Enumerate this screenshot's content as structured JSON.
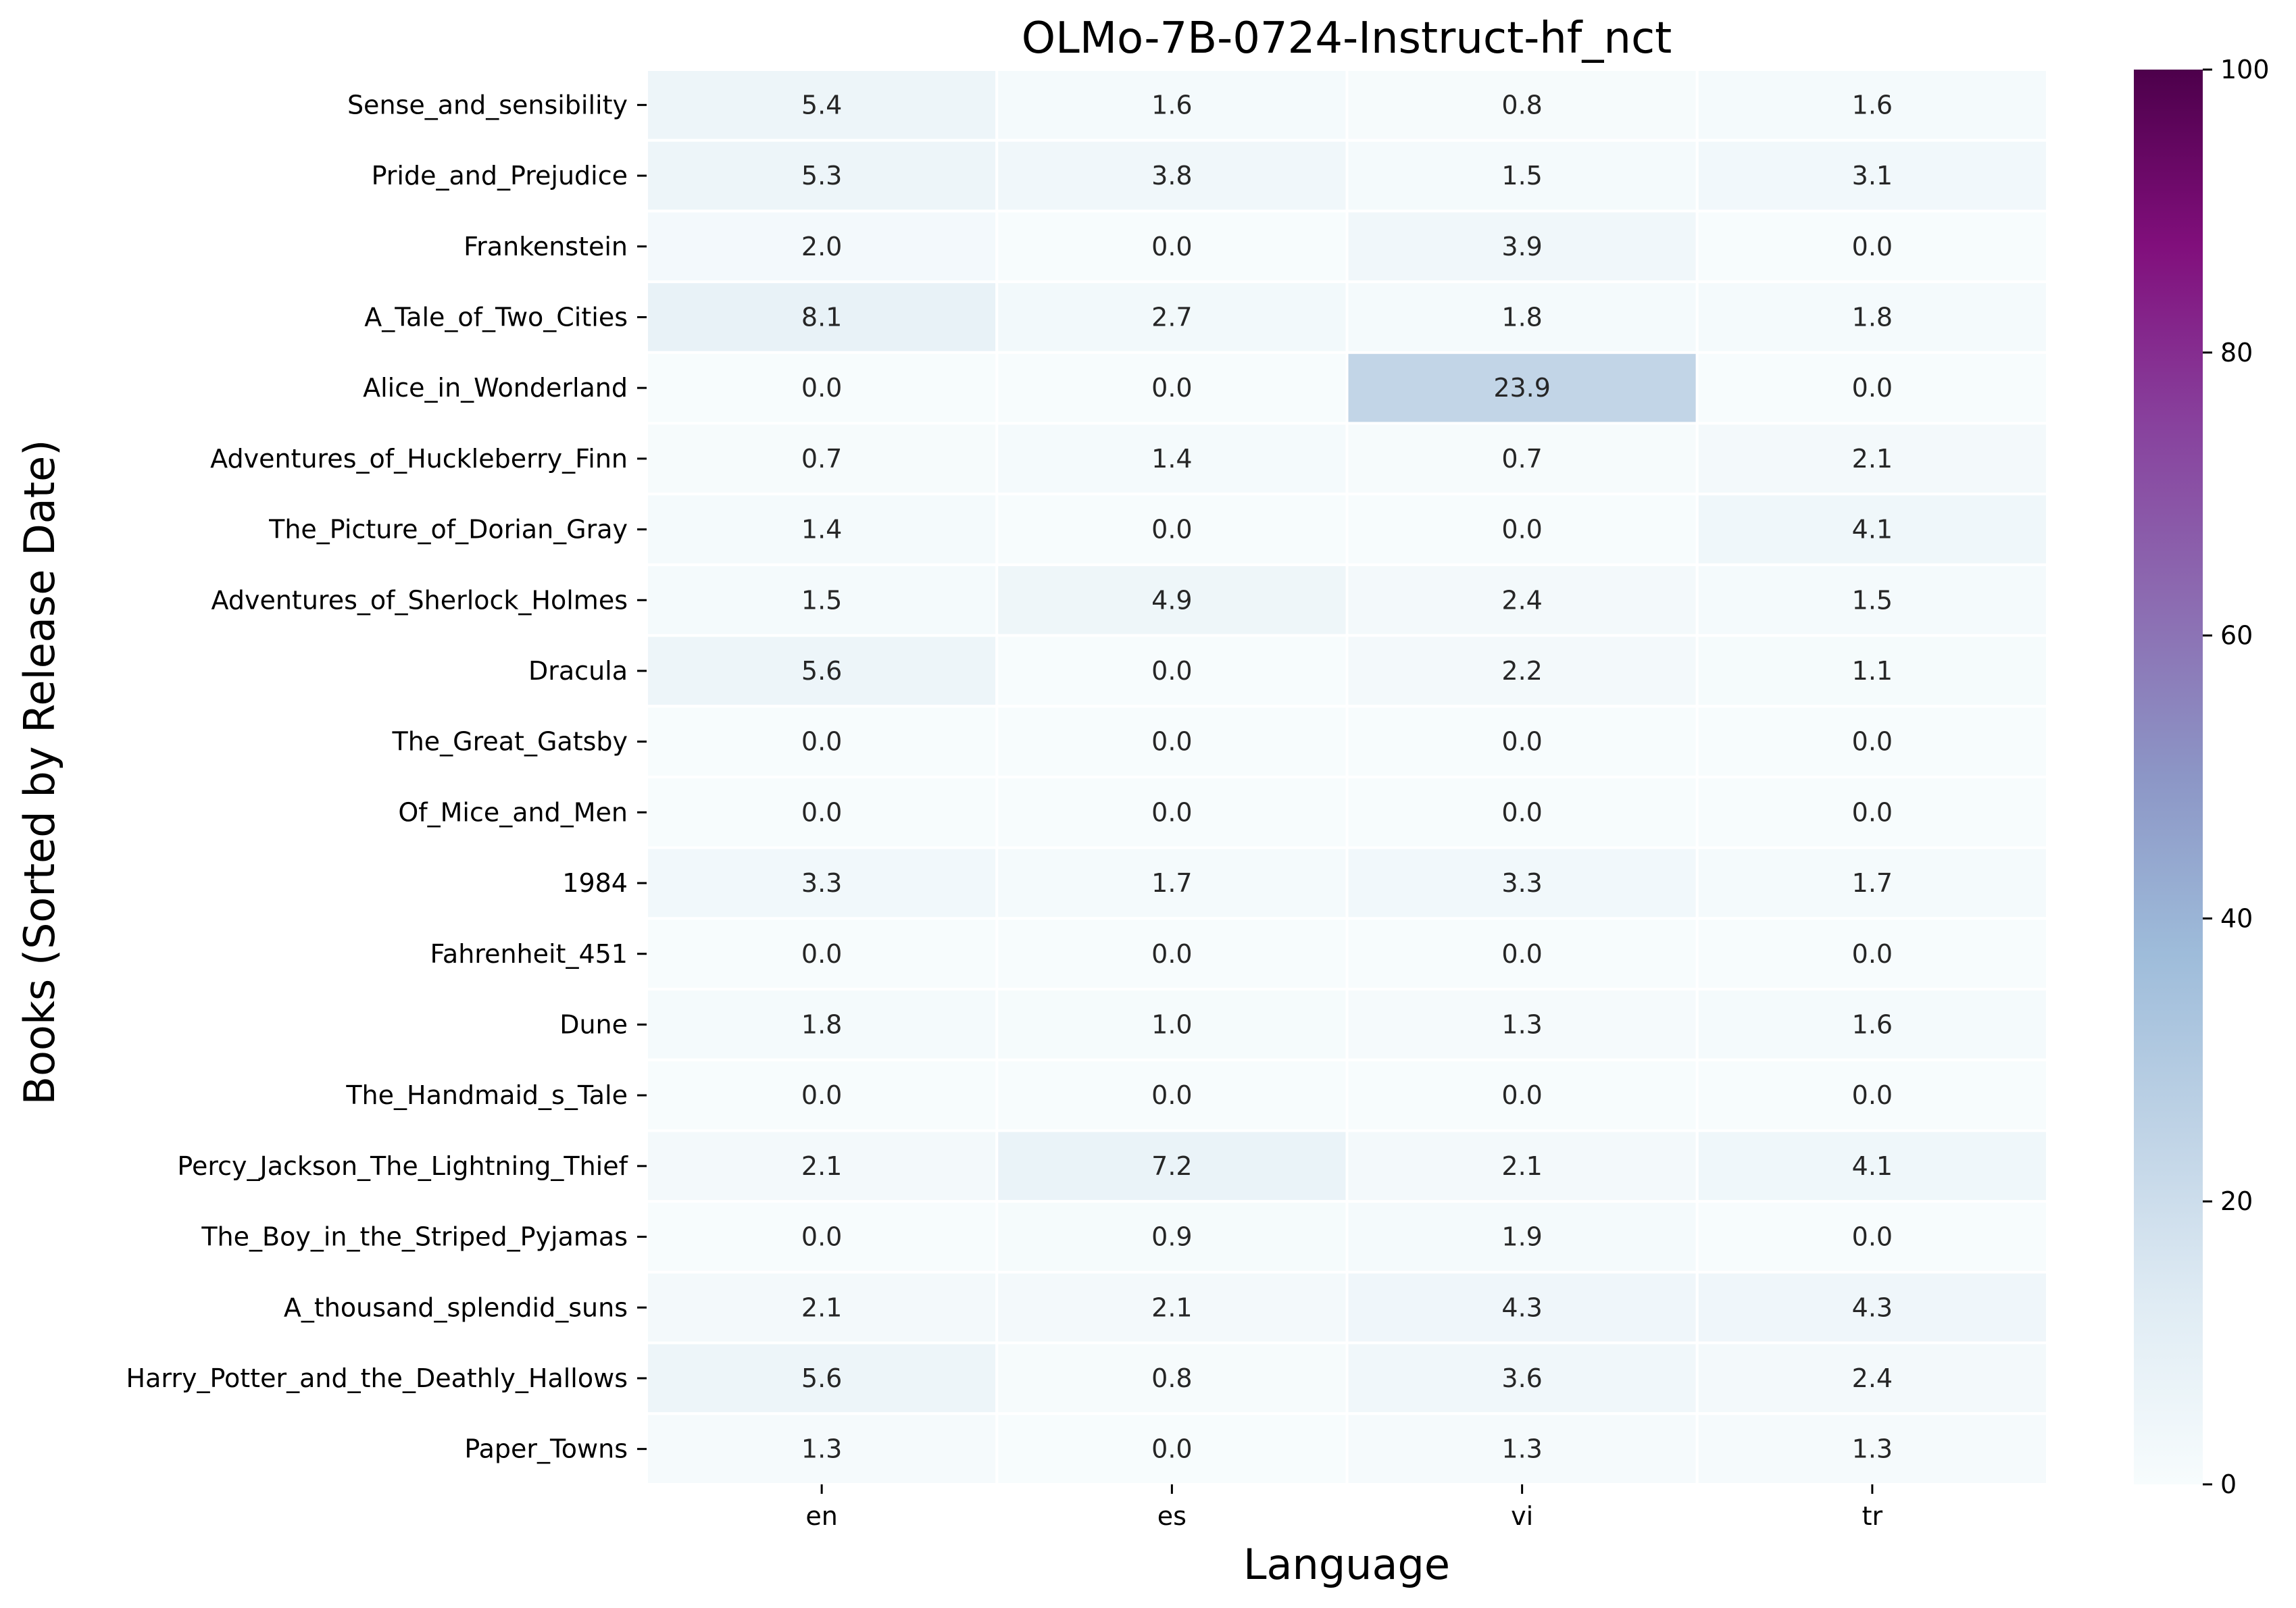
{
  "chart_data": {
    "type": "heatmap",
    "title": "OLMo-7B-0724-Instruct-hf_nct",
    "xlabel": "Language",
    "ylabel": "Books (Sorted by Release Date)",
    "x_categories": [
      "en",
      "es",
      "vi",
      "tr"
    ],
    "y_categories": [
      "Sense_and_sensibility",
      "Pride_and_Prejudice",
      "Frankenstein",
      "A_Tale_of_Two_Cities",
      "Alice_in_Wonderland",
      "Adventures_of_Huckleberry_Finn",
      "The_Picture_of_Dorian_Gray",
      "Adventures_of_Sherlock_Holmes",
      "Dracula",
      "The_Great_Gatsby",
      "Of_Mice_and_Men",
      "1984",
      "Fahrenheit_451",
      "Dune",
      "The_Handmaid_s_Tale",
      "Percy_Jackson_The_Lightning_Thief",
      "The_Boy_in_the_Striped_Pyjamas",
      "A_thousand_splendid_suns",
      "Harry_Potter_and_the_Deathly_Hallows",
      "Paper_Towns"
    ],
    "values": [
      [
        5.4,
        1.6,
        0.8,
        1.6
      ],
      [
        5.3,
        3.8,
        1.5,
        3.1
      ],
      [
        2.0,
        0.0,
        3.9,
        0.0
      ],
      [
        8.1,
        2.7,
        1.8,
        1.8
      ],
      [
        0.0,
        0.0,
        23.9,
        0.0
      ],
      [
        0.7,
        1.4,
        0.7,
        2.1
      ],
      [
        1.4,
        0.0,
        0.0,
        4.1
      ],
      [
        1.5,
        4.9,
        2.4,
        1.5
      ],
      [
        5.6,
        0.0,
        2.2,
        1.1
      ],
      [
        0.0,
        0.0,
        0.0,
        0.0
      ],
      [
        0.0,
        0.0,
        0.0,
        0.0
      ],
      [
        3.3,
        1.7,
        3.3,
        1.7
      ],
      [
        0.0,
        0.0,
        0.0,
        0.0
      ],
      [
        1.8,
        1.0,
        1.3,
        1.6
      ],
      [
        0.0,
        0.0,
        0.0,
        0.0
      ],
      [
        2.1,
        7.2,
        2.1,
        4.1
      ],
      [
        0.0,
        0.9,
        1.9,
        0.0
      ],
      [
        2.1,
        2.1,
        4.3,
        4.3
      ],
      [
        5.6,
        0.8,
        3.6,
        2.4
      ],
      [
        1.3,
        0.0,
        1.3,
        1.3
      ]
    ],
    "colorbar": {
      "min": 0,
      "max": 100,
      "ticks": [
        0,
        20,
        40,
        60,
        80,
        100
      ],
      "colormap": "BuPu",
      "stops": [
        "#f7fcfd",
        "#e0ecf4",
        "#bfd3e6",
        "#9ebcda",
        "#8c96c6",
        "#8c6bb1",
        "#88419d",
        "#810f7c",
        "#4d004b"
      ]
    }
  }
}
